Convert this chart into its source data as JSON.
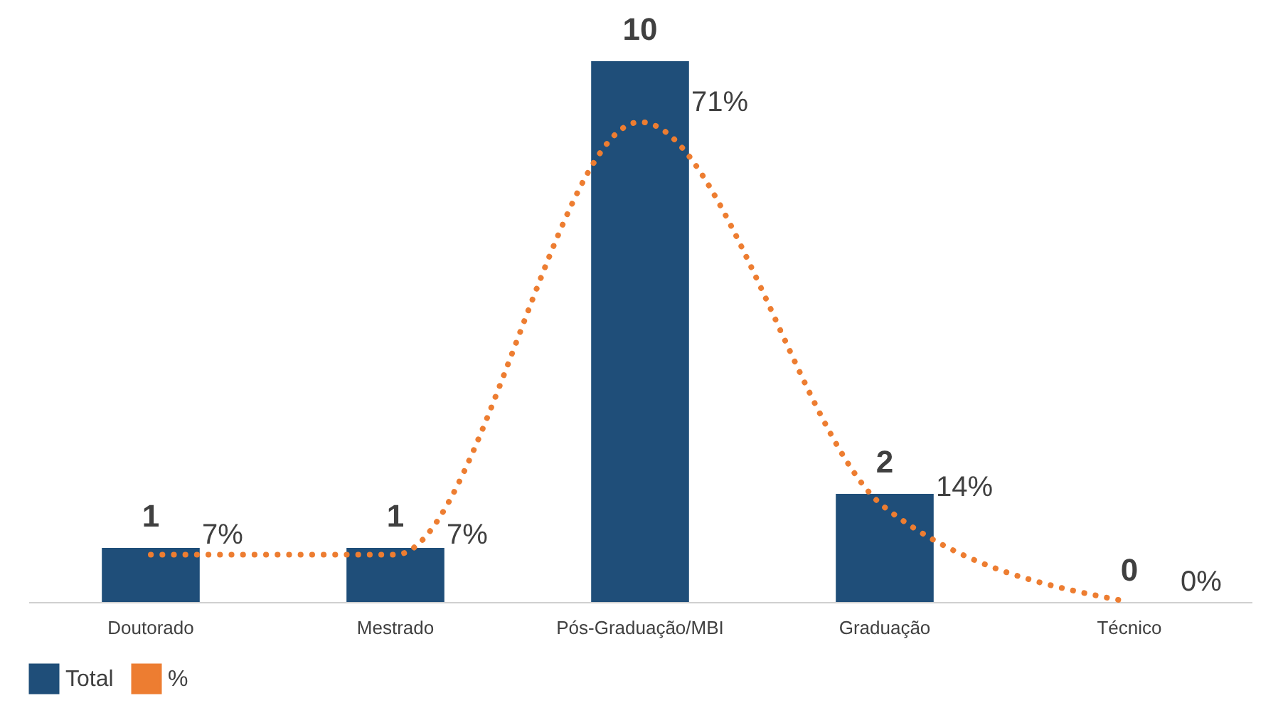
{
  "chart_data": {
    "type": "bar",
    "categories": [
      "Doutorado",
      "Mestrado",
      "Pós-Graduação/MBI",
      "Graduação",
      "Técnico"
    ],
    "data_labels": true,
    "legend": "bottom",
    "grid": false,
    "series": [
      {
        "name": "Total",
        "color": "#1f4e79",
        "values": [
          1,
          1,
          10,
          2,
          0
        ]
      },
      {
        "name": "%",
        "type": "line",
        "axis": "y2",
        "color": "#ed7d31",
        "line_style": "dotted",
        "values": [
          7,
          7,
          71,
          14,
          0
        ],
        "value_labels": [
          "7%",
          "7%",
          "71%",
          "14%",
          "0%"
        ]
      }
    ]
  }
}
